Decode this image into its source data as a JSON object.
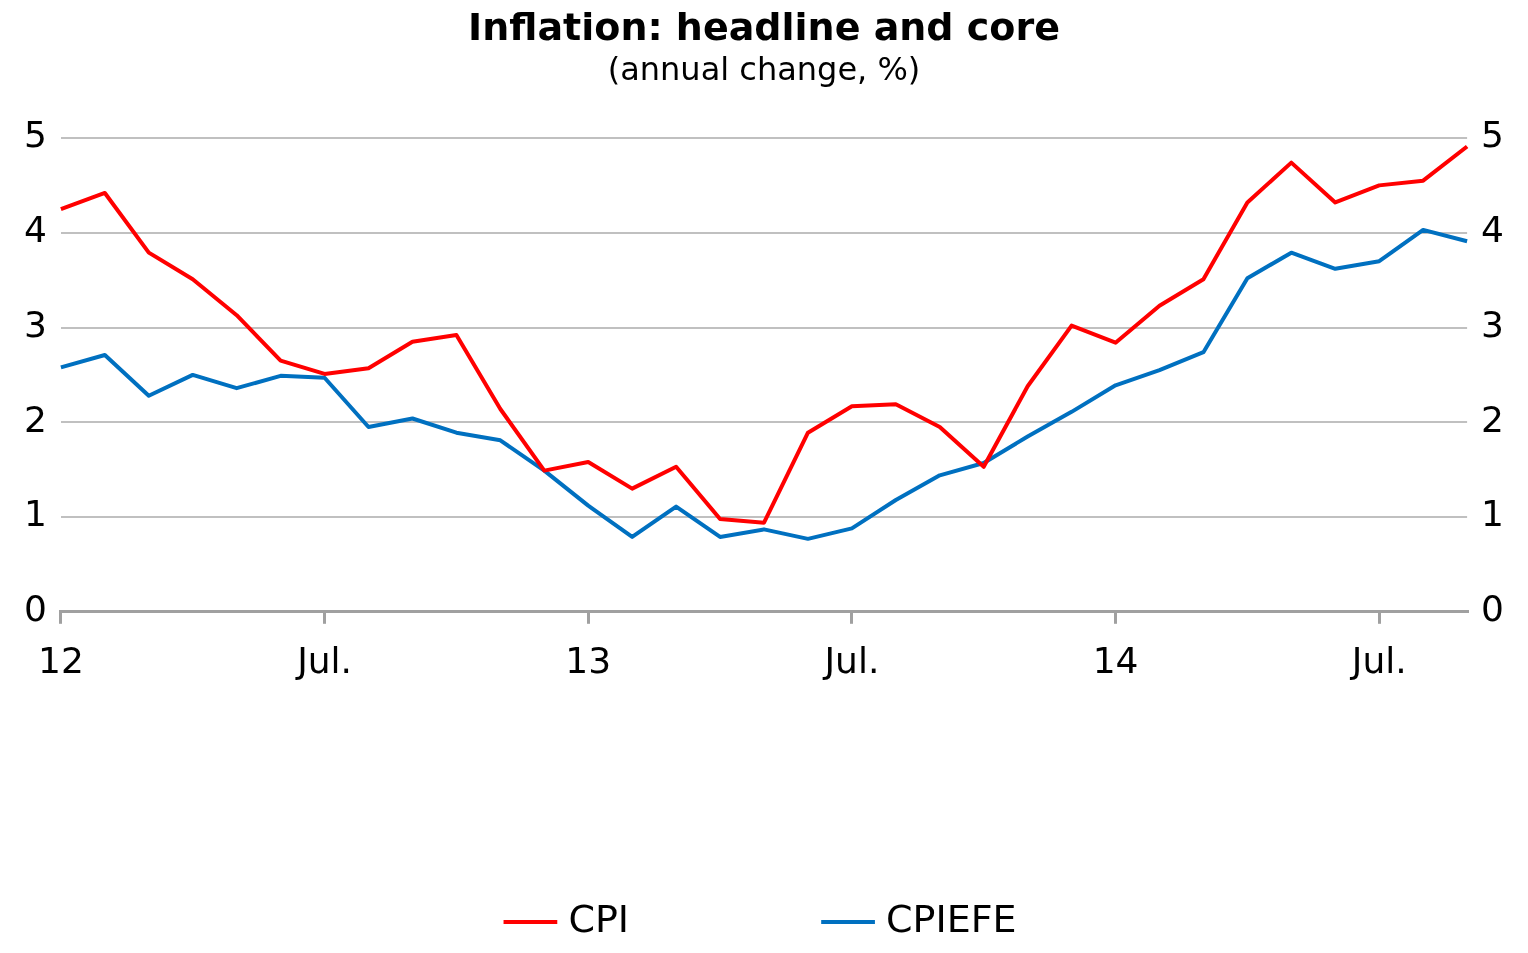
{
  "chart_data": {
    "type": "line",
    "title": "Inflation: headline and core",
    "subtitle": "(annual change, %)",
    "categories": [
      "12",
      null,
      null,
      null,
      null,
      null,
      "Jul.",
      null,
      null,
      null,
      null,
      null,
      "13",
      null,
      null,
      null,
      null,
      null,
      "Jul.",
      null,
      null,
      null,
      null,
      null,
      "14",
      null,
      null,
      null,
      null,
      null,
      "Jul.",
      null,
      null
    ],
    "series": [
      {
        "name": "CPI",
        "color": "#ff0000",
        "values": [
          4.25,
          4.42,
          3.79,
          3.51,
          3.13,
          2.65,
          2.51,
          2.57,
          2.85,
          2.92,
          2.14,
          1.49,
          1.58,
          1.3,
          1.53,
          0.98,
          0.94,
          1.89,
          2.17,
          2.19,
          1.95,
          1.53,
          2.38,
          3.02,
          2.84,
          3.23,
          3.51,
          4.32,
          4.74,
          4.32,
          4.5,
          4.55,
          4.91
        ]
      },
      {
        "name": "CPIEFE",
        "color": "#0070c0",
        "values": [
          2.58,
          2.71,
          2.28,
          2.5,
          2.36,
          2.49,
          2.47,
          1.95,
          2.04,
          1.89,
          1.81,
          1.49,
          1.12,
          0.79,
          1.11,
          0.79,
          0.87,
          0.77,
          0.88,
          1.18,
          1.44,
          1.57,
          1.85,
          2.11,
          2.39,
          2.55,
          2.74,
          3.52,
          3.79,
          3.62,
          3.7,
          4.03,
          3.91
        ]
      }
    ],
    "ylim": [
      0,
      5
    ],
    "yticks": [
      0,
      1,
      2,
      3,
      4,
      5
    ],
    "y2lim": [
      0,
      5
    ],
    "y2ticks": [
      0,
      1,
      2,
      3,
      4,
      5
    ],
    "grid": "y",
    "legend": "bottom",
    "marker": "none",
    "line_style": "solid"
  }
}
